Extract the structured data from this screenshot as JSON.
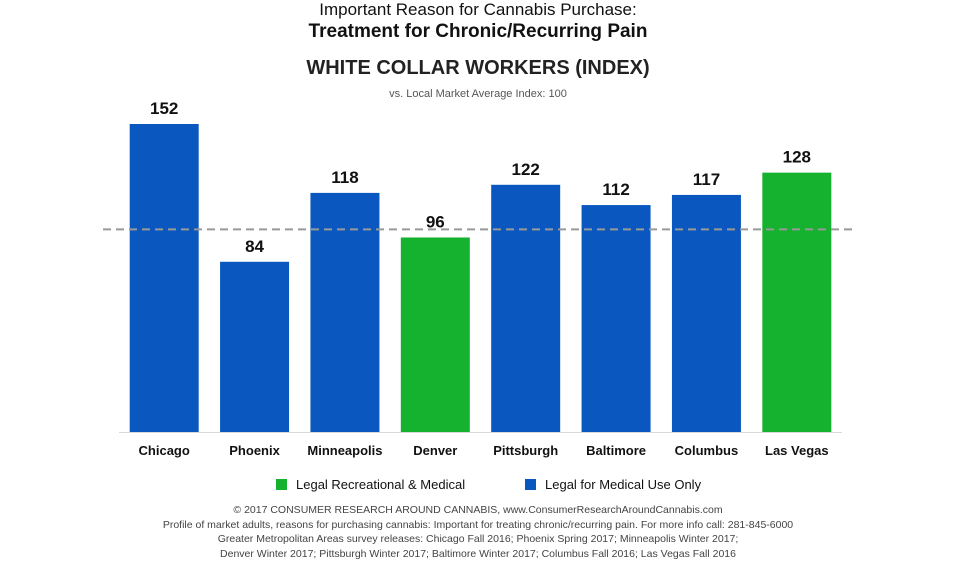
{
  "colors": {
    "recreational": "#14b22e",
    "medical": "#0a58bf",
    "reference_line": "#999999",
    "axis": "#d9d9d9"
  },
  "header": {
    "line1": "Important Reason for Cannabis Purchase:",
    "line2": "Treatment for Chronic/Recurring Pain",
    "line3": "WHITE COLLAR WORKERS (INDEX)",
    "subtitle": "vs. Local Market Average Index: 100"
  },
  "legend": {
    "recreational": "Legal Recreational & Medical",
    "medical": "Legal for Medical Use Only"
  },
  "chart_data": {
    "type": "bar",
    "categories": [
      "Chicago",
      "Phoenix",
      "Minneapolis",
      "Denver",
      "Pittsburgh",
      "Baltimore",
      "Columbus",
      "Las Vegas"
    ],
    "values": [
      152,
      84,
      118,
      96,
      122,
      112,
      117,
      128
    ],
    "legal_status": [
      "medical",
      "medical",
      "medical",
      "recreational",
      "medical",
      "medical",
      "medical",
      "recreational"
    ],
    "reference_value": 100,
    "ylim": [
      0,
      152
    ],
    "data_labels": true,
    "grid": false
  },
  "footer": {
    "line1": "© 2017 CONSUMER RESEARCH AROUND CANNABIS, www.ConsumerResearchAroundCannabis.com",
    "line2": "Profile of market adults, reasons for purchasing cannabis: Important for treating chronic/recurring pain. For more info call: 281-845-6000",
    "line3": "Greater Metropolitan Areas survey releases: Chicago Fall 2016; Phoenix Spring 2017; Minneapolis Winter 2017;",
    "line4": "Denver Winter 2017; Pittsburgh Winter 2017; Baltimore Winter 2017; Columbus Fall 2016; Las Vegas Fall 2016"
  }
}
